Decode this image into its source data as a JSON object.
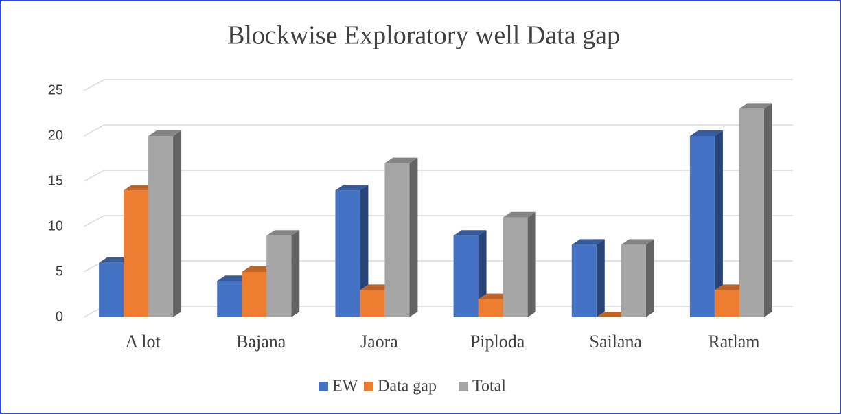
{
  "chart_data": {
    "type": "bar3d",
    "title": "Blockwise Exploratory  well Data gap",
    "categories": [
      "A lot",
      "Bajana",
      "Jaora",
      "Piploda",
      "Sailana",
      "Ratlam"
    ],
    "series": [
      {
        "name": "EW",
        "color": "#4472c4",
        "values": [
          6,
          4,
          14,
          9,
          8,
          20
        ]
      },
      {
        "name": "Data gap",
        "color": "#ed7d31",
        "values": [
          14,
          5,
          3,
          2,
          0,
          3
        ]
      },
      {
        "name": "Total",
        "color": "#a5a5a5",
        "values": [
          20,
          9,
          17,
          11,
          8,
          23
        ]
      }
    ],
    "ylim": [
      0,
      25
    ],
    "yticks": [
      0,
      5,
      10,
      15,
      20,
      25
    ],
    "grid": true,
    "legend": "bottom"
  }
}
